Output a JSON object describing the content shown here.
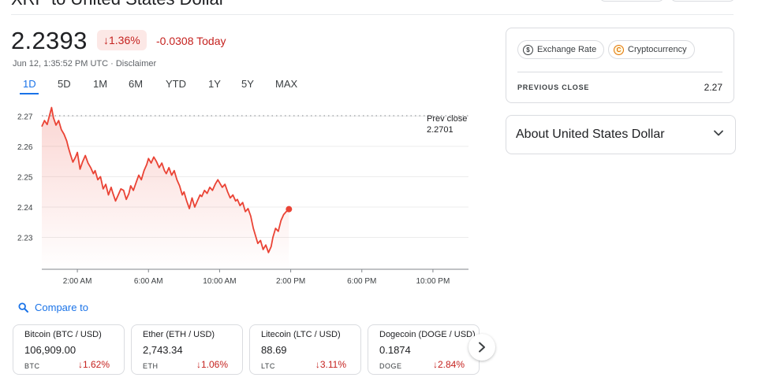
{
  "header": {
    "title": "XRP to United States Dollar",
    "price": "2.2393",
    "change_pct": "↓1.36%",
    "change_abs": "-0.0308 Today",
    "timestamp": "Jun 12, 1:35:52 PM UTC · Disclaimer"
  },
  "tabs": [
    {
      "label": "1D",
      "active": true
    },
    {
      "label": "5D"
    },
    {
      "label": "1M"
    },
    {
      "label": "6M"
    },
    {
      "label": "YTD"
    },
    {
      "label": "1Y"
    },
    {
      "label": "5Y"
    },
    {
      "label": "MAX"
    }
  ],
  "chart_data": {
    "type": "line",
    "title": "",
    "xlabel": "",
    "ylabel": "",
    "ylim": [
      2.2195,
      2.2745
    ],
    "y_ticks": [
      "2.27",
      "2.26",
      "2.25",
      "2.24",
      "2.23"
    ],
    "y_tick_values": [
      2.27,
      2.26,
      2.25,
      2.24,
      2.23
    ],
    "x_ticks": [
      "2:00 AM",
      "6:00 AM",
      "10:00 AM",
      "2:00 PM",
      "6:00 PM",
      "10:00 PM"
    ],
    "x_tick_hours": [
      2,
      6,
      10,
      14,
      18,
      22
    ],
    "xlim_hours": [
      0,
      24
    ],
    "grid": true,
    "reference_line": {
      "label_line1": "Prev close",
      "label_line2": "2.2701",
      "value": 2.2701
    },
    "series": [
      {
        "color": "#ea4335",
        "x_hours": [
          0.0,
          0.15,
          0.3,
          0.45,
          0.55,
          0.65,
          0.8,
          0.95,
          1.1,
          1.25,
          1.4,
          1.5,
          1.6,
          1.75,
          1.9,
          2.0,
          2.15,
          2.3,
          2.45,
          2.6,
          2.75,
          2.9,
          3.0,
          3.15,
          3.3,
          3.45,
          3.6,
          3.75,
          3.9,
          4.0,
          4.15,
          4.3,
          4.45,
          4.6,
          4.75,
          4.9,
          5.0,
          5.15,
          5.3,
          5.45,
          5.6,
          5.75,
          5.9,
          6.0,
          6.15,
          6.3,
          6.45,
          6.6,
          6.75,
          6.9,
          7.0,
          7.15,
          7.3,
          7.45,
          7.6,
          7.75,
          7.9,
          8.0,
          8.15,
          8.3,
          8.45,
          8.6,
          8.75,
          8.9,
          9.0,
          9.15,
          9.3,
          9.45,
          9.6,
          9.75,
          9.9,
          10.0,
          10.15,
          10.3,
          10.45,
          10.6,
          10.75,
          10.9,
          11.0,
          11.15,
          11.3,
          11.45,
          11.6,
          11.75,
          11.9,
          12.0,
          12.15,
          12.3,
          12.45,
          12.6,
          12.75,
          12.9,
          13.0,
          13.15,
          13.3,
          13.45,
          13.6,
          13.75,
          13.9
        ],
        "y": [
          2.2665,
          2.2685,
          2.2672,
          2.2705,
          2.2728,
          2.2695,
          2.267,
          2.2685,
          2.2655,
          2.264,
          2.2618,
          2.2595,
          2.2575,
          2.2548,
          2.2565,
          2.258,
          2.2525,
          2.255,
          2.257,
          2.2545,
          2.253,
          2.251,
          2.252,
          2.249,
          2.25,
          2.246,
          2.2475,
          2.244,
          2.2465,
          2.2445,
          2.242,
          2.244,
          2.246,
          2.2455,
          2.2425,
          2.2445,
          2.247,
          2.2455,
          2.248,
          2.2505,
          2.249,
          2.252,
          2.254,
          2.256,
          2.2545,
          2.2565,
          2.255,
          2.253,
          2.2545,
          2.252,
          2.251,
          2.253,
          2.2505,
          2.252,
          2.249,
          2.247,
          2.244,
          2.245,
          2.242,
          2.2395,
          2.243,
          2.24,
          2.242,
          2.244,
          2.2435,
          2.2455,
          2.2445,
          2.2465,
          2.2455,
          2.2475,
          2.249,
          2.248,
          2.2465,
          2.2475,
          2.245,
          2.243,
          2.244,
          2.242,
          2.2425,
          2.2405,
          2.2415,
          2.2385,
          2.2395,
          2.237,
          2.233,
          2.231,
          2.228,
          2.229,
          2.226,
          2.2275,
          2.225,
          2.227,
          2.23,
          2.233,
          2.232,
          2.2355,
          2.2375,
          2.2385,
          2.2393
        ]
      }
    ]
  },
  "compare": {
    "label": "Compare to"
  },
  "cards": [
    {
      "name": "Bitcoin (BTC / USD)",
      "value": "106,909.00",
      "symbol": "BTC",
      "change": "↓1.62%"
    },
    {
      "name": "Ether (ETH / USD)",
      "value": "2,743.34",
      "symbol": "ETH",
      "change": "↓1.06%"
    },
    {
      "name": "Litecoin (LTC / USD)",
      "value": "88.69",
      "symbol": "LTC",
      "change": "↓3.11%"
    },
    {
      "name": "Dogecoin (DOGE / USD)",
      "value": "0.1874",
      "symbol": "DOGE",
      "change": "↓2.84%"
    }
  ],
  "info_panel": {
    "chips": [
      {
        "label": "Exchange Rate",
        "icon": "dollar-coin-icon",
        "icon_glyph": "$",
        "icon_color": "#3c4043"
      },
      {
        "label": "Cryptocurrency",
        "icon": "crypto-coin-icon",
        "icon_glyph": "C",
        "icon_color": "#e37400"
      }
    ],
    "prev_close_label": "PREVIOUS CLOSE",
    "prev_close_value": "2.27"
  },
  "about": {
    "label": "About United States Dollar"
  },
  "colors": {
    "accent": "#1a73e8",
    "negative": "#c5221f",
    "line": "#ea4335"
  }
}
